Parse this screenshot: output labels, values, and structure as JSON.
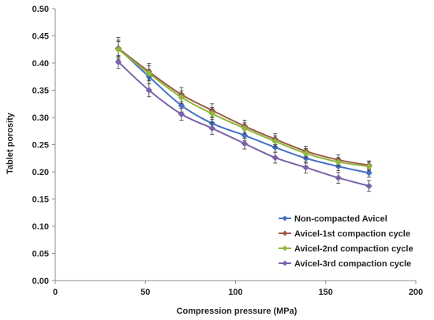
{
  "chart_data": {
    "type": "line",
    "xlabel": "Compression pressure (MPa)",
    "ylabel": "Tablet porosity",
    "xlim": [
      0,
      200
    ],
    "ylim": [
      0,
      0.5
    ],
    "x_ticks": [
      "0",
      "50",
      "100",
      "150",
      "200"
    ],
    "y_ticks": [
      "0.00",
      "0.05",
      "0.10",
      "0.15",
      "0.20",
      "0.25",
      "0.30",
      "0.35",
      "0.40",
      "0.45",
      "0.50"
    ],
    "grid": false,
    "error_bars": true,
    "legend_position": "bottom-right",
    "x": [
      35,
      52,
      70,
      87,
      105,
      122,
      139,
      157,
      174
    ],
    "series": [
      {
        "name": "Non-compacted Avicel",
        "color": "#4472C4",
        "marker": "diamond",
        "values": [
          0.427,
          0.375,
          0.322,
          0.289,
          0.267,
          0.245,
          0.225,
          0.21,
          0.198
        ],
        "errors": [
          0.015,
          0.013,
          0.012,
          0.011,
          0.01,
          0.009,
          0.009,
          0.008,
          0.008
        ]
      },
      {
        "name": "Avicel-1st compaction cycle",
        "color": "#9C5B47",
        "marker": "diamond",
        "values": [
          0.427,
          0.384,
          0.342,
          0.313,
          0.284,
          0.26,
          0.238,
          0.222,
          0.212
        ],
        "errors": [
          0.02,
          0.015,
          0.013,
          0.012,
          0.011,
          0.01,
          0.009,
          0.009,
          0.008
        ]
      },
      {
        "name": "Avicel-2nd compaction cycle",
        "color": "#8DB83C",
        "marker": "diamond",
        "values": [
          0.425,
          0.381,
          0.337,
          0.307,
          0.28,
          0.256,
          0.234,
          0.218,
          0.21
        ],
        "errors": [
          0.015,
          0.014,
          0.012,
          0.011,
          0.01,
          0.01,
          0.009,
          0.008,
          0.008
        ]
      },
      {
        "name": "Avicel-3rd compaction cycle",
        "color": "#7B62A8",
        "marker": "diamond",
        "values": [
          0.402,
          0.35,
          0.306,
          0.28,
          0.252,
          0.226,
          0.208,
          0.189,
          0.174
        ],
        "errors": [
          0.012,
          0.012,
          0.011,
          0.011,
          0.01,
          0.01,
          0.01,
          0.01,
          0.01
        ]
      }
    ]
  }
}
